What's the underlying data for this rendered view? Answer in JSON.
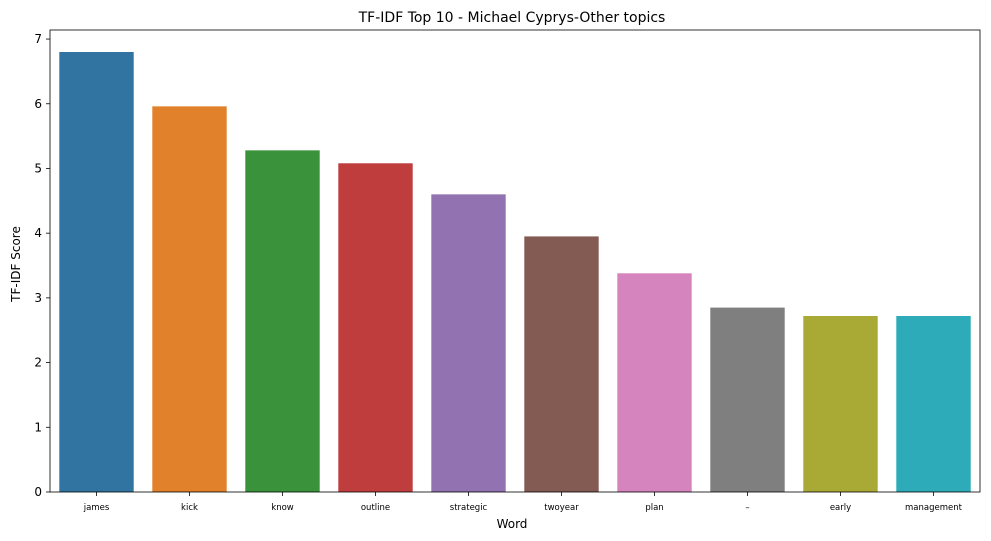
{
  "chart_data": {
    "type": "bar",
    "title": "TF-IDF Top 10 - Michael Cyprys-Other topics",
    "xlabel": "Word",
    "ylabel": "TF-IDF Score",
    "categories": [
      "james",
      "kick",
      "know",
      "outline",
      "strategic",
      "twoyear",
      "plan",
      "–",
      "early",
      "management"
    ],
    "values": [
      6.8,
      5.96,
      5.28,
      5.08,
      4.6,
      3.95,
      3.38,
      2.85,
      2.72,
      2.72
    ],
    "colors": [
      "#3274a1",
      "#e1812c",
      "#3a923a",
      "#c03d3e",
      "#9372b2",
      "#845b53",
      "#d684bd",
      "#7f7f7f",
      "#a9aa35",
      "#2eabb8"
    ],
    "ylim": [
      0,
      7.14
    ],
    "yticks": [
      0,
      1,
      2,
      3,
      4,
      5,
      6,
      7
    ],
    "grid": false,
    "legend": "none"
  }
}
